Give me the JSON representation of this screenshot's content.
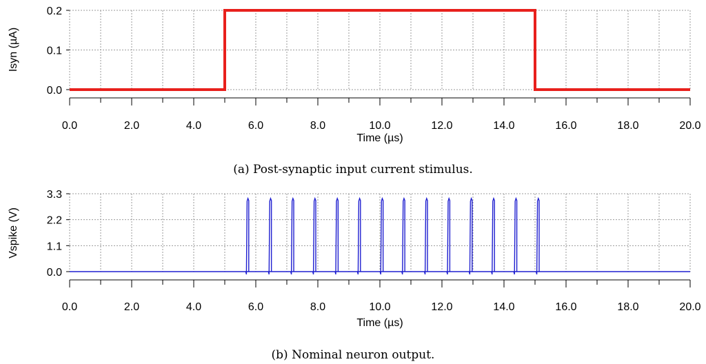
{
  "chart_data": [
    {
      "type": "line",
      "ylabel": "Isyn (µA)",
      "xlabel": "Time (µs)",
      "caption": "(a) Post-synaptic input current stimulus.",
      "xlim": [
        0,
        20
      ],
      "ylim": [
        0,
        0.2
      ],
      "x_ticks": [
        "0.0",
        "2.0",
        "4.0",
        "6.0",
        "8.0",
        "10.0",
        "12.0",
        "14.0",
        "16.0",
        "18.0",
        "20.0"
      ],
      "y_ticks": [
        "0.0",
        "0.1",
        "0.2"
      ],
      "grid": true,
      "series": [
        {
          "color": "#e8201c",
          "x": [
            0,
            5,
            5,
            15,
            15,
            20
          ],
          "y": [
            0,
            0,
            0.2,
            0.2,
            0,
            0
          ]
        }
      ]
    },
    {
      "type": "line",
      "ylabel": "Vspike (V)",
      "xlabel": "Time (µs)",
      "caption": "(b) Nominal neuron output.",
      "xlim": [
        0,
        20
      ],
      "ylim": [
        0,
        3.3
      ],
      "x_ticks": [
        "0.0",
        "2.0",
        "4.0",
        "6.0",
        "8.0",
        "10.0",
        "12.0",
        "14.0",
        "16.0",
        "18.0",
        "20.0"
      ],
      "y_ticks": [
        "0.0",
        "1.1",
        "2.2",
        "3.3"
      ],
      "grid": true,
      "series": [
        {
          "color": "#1f1fd0",
          "spike_times": [
            5.72,
            6.45,
            7.17,
            7.88,
            8.6,
            9.32,
            10.05,
            10.75,
            11.48,
            12.2,
            12.92,
            13.64,
            14.36,
            15.08
          ],
          "spike_peak": 3.1,
          "baseline": 0.0
        }
      ]
    }
  ]
}
